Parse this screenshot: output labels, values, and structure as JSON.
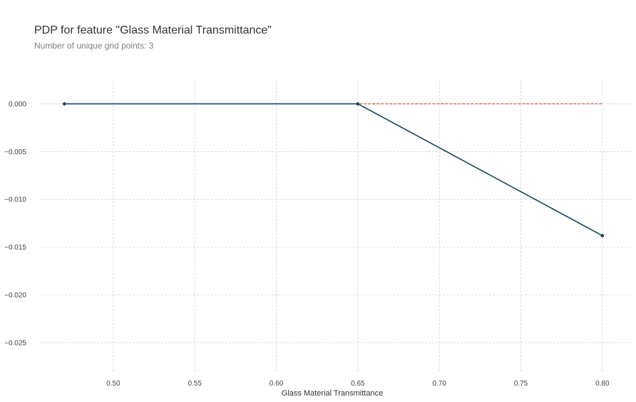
{
  "chart_data": {
    "type": "line",
    "title": "PDP for feature \"Glass Material Transmittance\"",
    "subtitle": "Number of unique grid points: 3",
    "xlabel": "Glass Material Transmittance",
    "ylabel": "",
    "xlim": [
      0.455,
      0.818
    ],
    "ylim": [
      -0.028,
      0.0025
    ],
    "x_ticks": [
      0.5,
      0.55,
      0.6,
      0.65,
      0.7,
      0.75,
      0.8
    ],
    "x_tick_labels": [
      "0.50",
      "0.55",
      "0.60",
      "0.65",
      "0.70",
      "0.75",
      "0.80"
    ],
    "y_ticks": [
      0.0,
      -0.005,
      -0.01,
      -0.015,
      -0.02,
      -0.025
    ],
    "y_tick_labels": [
      "0.000",
      "−0.005",
      "−0.010",
      "−0.015",
      "−0.020",
      "−0.025"
    ],
    "grid": true,
    "series": [
      {
        "x": [
          0.47,
          0.65,
          0.8
        ],
        "values": [
          0.0,
          0.0,
          -0.0138
        ],
        "color": "#1a4a5e",
        "style": "solid",
        "markers": true
      },
      {
        "x": [
          0.47,
          0.8
        ],
        "values": [
          0.0,
          0.0
        ],
        "color": "#c0392b",
        "style": "dashed",
        "markers": false
      }
    ]
  }
}
